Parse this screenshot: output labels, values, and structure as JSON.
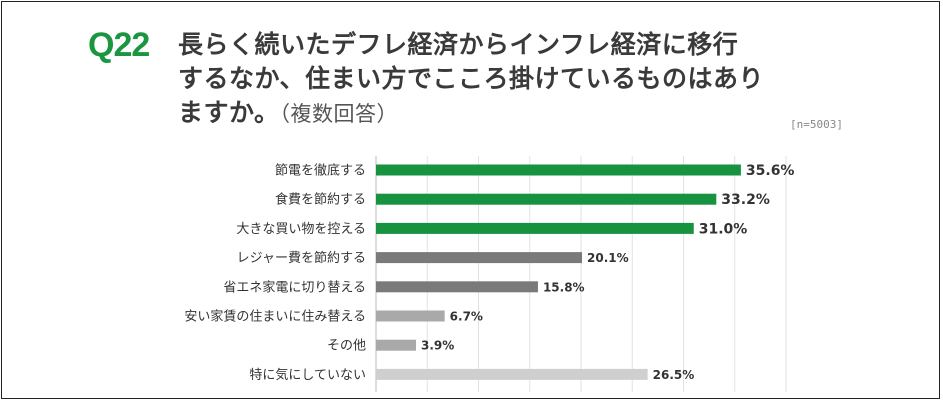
{
  "question": {
    "number": "Q22",
    "title_lines": [
      "長らく続いたデフレ経済からインフレ経済に移行",
      "するなか、住まい方でこころ掛けているものはあり",
      "ますか。"
    ],
    "title_suffix": "（複数回答）",
    "sample_size": "[n=5003]"
  },
  "colors": {
    "accent": "#1a9641",
    "bar_top": "#17923f",
    "bar_mid": "#7a7a7a",
    "bar_low": "#a9a9a9",
    "bar_other": "#cfcfcf",
    "grid": "#e2e2e2"
  },
  "chart_data": {
    "type": "bar",
    "orientation": "horizontal",
    "title": "長らく続いたデフレ経済からインフレ経済に移行するなか、住まい方でこころ掛けているものはありますか。（複数回答）",
    "unit": "%",
    "xlim": [
      0,
      40
    ],
    "grid": true,
    "categories": [
      "節電を徹底する",
      "食費を節約する",
      "大きな買い物を控える",
      "レジャー費を節約する",
      "省エネ家電に切り替える",
      "安い家賃の住まいに住み替える",
      "その他",
      "特に気にしていない"
    ],
    "values": [
      35.6,
      33.2,
      31.0,
      20.1,
      15.8,
      6.7,
      3.9,
      26.5
    ],
    "value_labels": [
      "35.6%",
      "33.2%",
      "31.0%",
      "20.1%",
      "15.8%",
      "6.7%",
      "3.9%",
      "26.5%"
    ],
    "color_groups": [
      "top",
      "top",
      "top",
      "mid",
      "mid",
      "low",
      "low",
      "other"
    ]
  }
}
